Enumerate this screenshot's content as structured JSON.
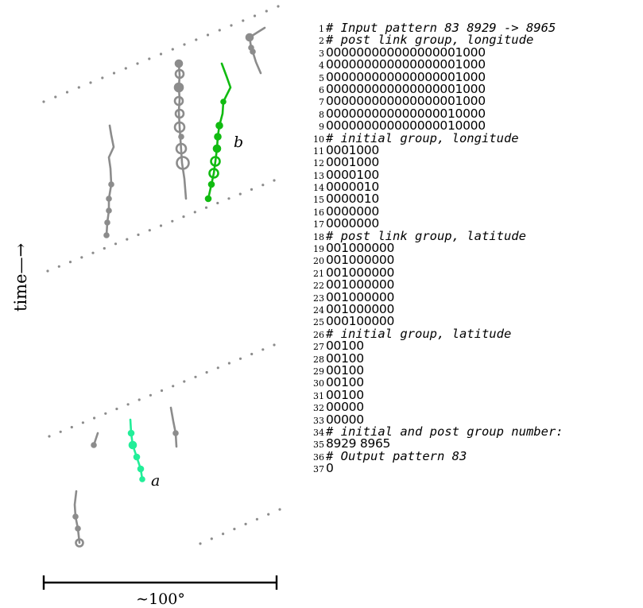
{
  "axis": {
    "time_label": "time—→",
    "scale_label": "∼100°"
  },
  "tracks": {
    "label_a": "a",
    "label_b": "b",
    "highlight_a_color": "#22ee99",
    "highlight_b_color": "#11bb11",
    "track_color": "#8c8c8c"
  },
  "listing": [
    {
      "num": "1",
      "text": "# Input pattern 83 8929 -> 8965",
      "comment": true
    },
    {
      "num": "2",
      "text": "# post link group, longitude",
      "comment": true
    },
    {
      "num": "3",
      "text": "000000000000000001000",
      "comment": false
    },
    {
      "num": "4",
      "text": "000000000000000001000",
      "comment": false
    },
    {
      "num": "5",
      "text": "000000000000000001000",
      "comment": false
    },
    {
      "num": "6",
      "text": "000000000000000001000",
      "comment": false
    },
    {
      "num": "7",
      "text": "000000000000000001000",
      "comment": false
    },
    {
      "num": "8",
      "text": "000000000000000010000",
      "comment": false
    },
    {
      "num": "9",
      "text": "000000000000000010000",
      "comment": false
    },
    {
      "num": "10",
      "text": "# initial group, longitude",
      "comment": true
    },
    {
      "num": "11",
      "text": "0001000",
      "comment": false
    },
    {
      "num": "12",
      "text": "0001000",
      "comment": false
    },
    {
      "num": "13",
      "text": "0000100",
      "comment": false
    },
    {
      "num": "14",
      "text": "0000010",
      "comment": false
    },
    {
      "num": "15",
      "text": "0000010",
      "comment": false
    },
    {
      "num": "16",
      "text": "0000000",
      "comment": false
    },
    {
      "num": "17",
      "text": "0000000",
      "comment": false
    },
    {
      "num": "18",
      "text": "# post link group, latitude",
      "comment": true
    },
    {
      "num": "19",
      "text": "001000000",
      "comment": false
    },
    {
      "num": "20",
      "text": "001000000",
      "comment": false
    },
    {
      "num": "21",
      "text": "001000000",
      "comment": false
    },
    {
      "num": "22",
      "text": "001000000",
      "comment": false
    },
    {
      "num": "23",
      "text": "001000000",
      "comment": false
    },
    {
      "num": "24",
      "text": "001000000",
      "comment": false
    },
    {
      "num": "25",
      "text": "000100000",
      "comment": false
    },
    {
      "num": "26",
      "text": "# initial group, latitude",
      "comment": true
    },
    {
      "num": "27",
      "text": "00100",
      "comment": false
    },
    {
      "num": "28",
      "text": "00100",
      "comment": false
    },
    {
      "num": "29",
      "text": "00100",
      "comment": false
    },
    {
      "num": "30",
      "text": "00100",
      "comment": false
    },
    {
      "num": "31",
      "text": "00100",
      "comment": false
    },
    {
      "num": "32",
      "text": "00000",
      "comment": false
    },
    {
      "num": "33",
      "text": "00000",
      "comment": false
    },
    {
      "num": "34",
      "text": "# initial and post group number:",
      "comment": true
    },
    {
      "num": "35",
      "text": "8929 8965",
      "comment": false
    },
    {
      "num": "36",
      "text": "# Output pattern 83",
      "comment": true
    },
    {
      "num": "37",
      "text": "0",
      "comment": false
    }
  ]
}
